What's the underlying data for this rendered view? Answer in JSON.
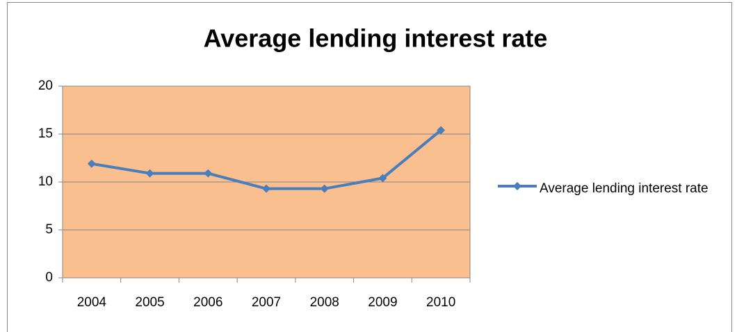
{
  "chart_data": {
    "type": "line",
    "title": "Average lending interest rate",
    "categories": [
      "2004",
      "2005",
      "2006",
      "2007",
      "2008",
      "2009",
      "2010"
    ],
    "series": [
      {
        "name": "Average lending interest rate",
        "color": "#4a7ebb",
        "values": [
          11.9,
          10.9,
          10.9,
          9.3,
          9.3,
          10.4,
          15.4
        ]
      }
    ],
    "ylim": [
      0,
      20
    ],
    "yticks": [
      0,
      5,
      10,
      15,
      20
    ],
    "grid": true,
    "plot_background": "#f9bf8f",
    "legend": "right"
  }
}
